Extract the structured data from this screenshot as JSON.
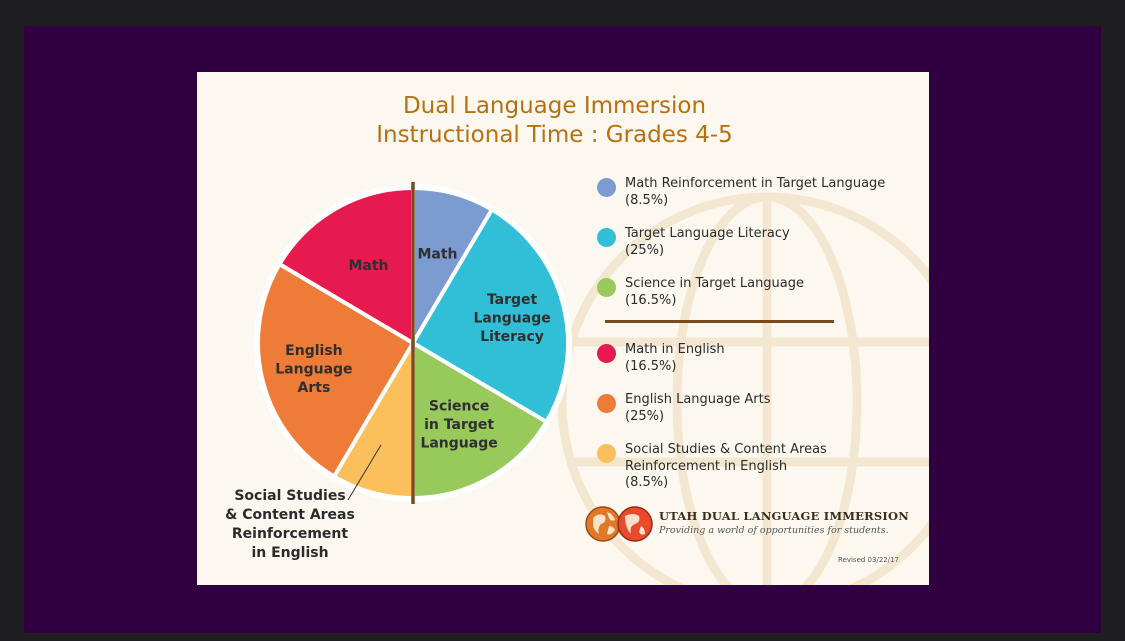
{
  "title_lines": [
    "Dual Language Immersion",
    "Instructional Time : Grades 4-5"
  ],
  "chart_data": {
    "type": "pie",
    "title": "Dual Language Immersion Instructional Time : Grades 4-5",
    "slices": [
      {
        "name": "Math Reinforcement in Target Language",
        "value": 8.5,
        "color": "#7b9bd1",
        "label_lines": [
          "Math"
        ],
        "label_color": "#2f2f2f"
      },
      {
        "name": "Target Language Literacy",
        "value": 25,
        "color": "#30bfd6",
        "label_lines": [
          "Target",
          "Language",
          "Literacy"
        ],
        "label_color": "#2f2f2f"
      },
      {
        "name": "Science in Target Language",
        "value": 16.5,
        "color": "#97c95b",
        "label_lines": [
          "Science",
          "in Target",
          "Language"
        ],
        "label_color": "#2f2f2f"
      },
      {
        "name": "Social Studies & Content Areas Reinforcement in English",
        "value": 8.5,
        "color": "#fbc05b",
        "label_lines": [],
        "label_color": "#2f2f2f"
      },
      {
        "name": "English Language Arts",
        "value": 25,
        "color": "#ef7b38",
        "label_lines": [
          "English",
          "Language",
          "Arts"
        ],
        "label_color": "#2f2f2f"
      },
      {
        "name": "Math in English",
        "value": 16.5,
        "color": "#e61a4f",
        "label_lines": [
          "Math"
        ],
        "label_color": "#2f2f2f"
      }
    ]
  },
  "social_studies_label_lines": [
    "Social Studies",
    "& Content Areas",
    "Reinforcement",
    "in English"
  ],
  "legend": [
    {
      "lines": [
        "Math Reinforcement in Target Language",
        "(8.5%)"
      ],
      "color": "#7b9bd1"
    },
    {
      "lines": [
        "Target Language Literacy",
        "(25%)"
      ],
      "color": "#30bfd6"
    },
    {
      "lines": [
        "Science in Target Language",
        "(16.5%)"
      ],
      "color": "#97c95b"
    },
    {
      "lines": [
        "Math in English",
        "(16.5%)"
      ],
      "color": "#e61a4f"
    },
    {
      "lines": [
        "English Language Arts",
        "(25%)"
      ],
      "color": "#ef7b38"
    },
    {
      "lines": [
        "Social Studies & Content Areas",
        "Reinforcement in English",
        "(8.5%)"
      ],
      "color": "#fbc05b"
    }
  ],
  "logo": {
    "title": "UTAH DUAL LANGUAGE IMMERSION",
    "tagline": "Providing a world of opportunities for students.",
    "icon": "globe-logo-icon"
  },
  "revised": "Revised 03/22/17",
  "colors": {
    "title": "#b8700f",
    "divider": "#7b4a1a",
    "background": "#fcf8f0",
    "frame": "#310040"
  }
}
